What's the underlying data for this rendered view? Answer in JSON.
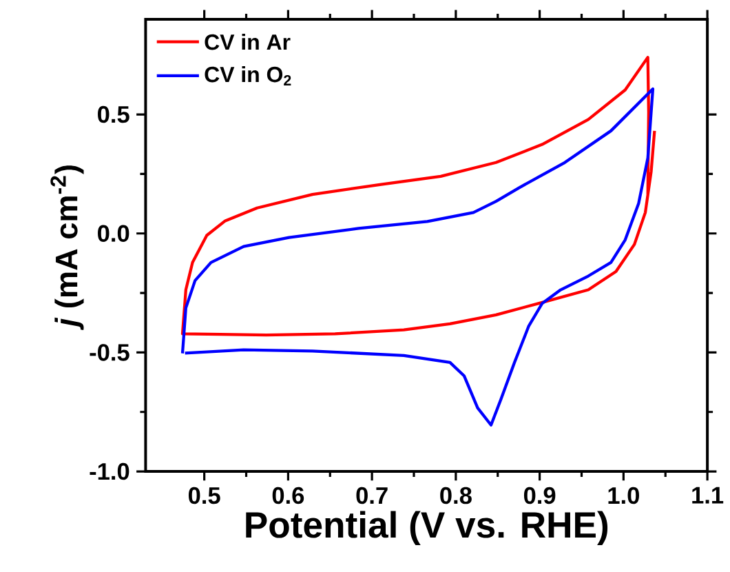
{
  "chart_data": {
    "type": "line",
    "xlabel": "Potential (V vs. RHE)",
    "ylabel": "*j* (mA cm$^{-2}$)",
    "xlim": [
      0.43,
      1.1
    ],
    "ylim": [
      -1.0,
      0.9
    ],
    "xticks": [
      0.5,
      0.6,
      0.7,
      0.8,
      0.9,
      {
        "value": 1.0,
        "label": "1.0"
      },
      1.1
    ],
    "yticks": [
      {
        "value": -1.0,
        "label": "-1.0"
      },
      -0.5,
      {
        "value": 0.0,
        "label": "0.0"
      },
      0.5
    ],
    "legend": "top left",
    "grid": false,
    "marker": "none",
    "line_style": "solid",
    "series": [
      {
        "name": "CV in Ar",
        "color": "#ff0000",
        "x": [
          1.037,
          1.033,
          1.026,
          1.013,
          0.991,
          0.958,
          0.903,
          0.848,
          0.793,
          0.738,
          0.656,
          0.574,
          0.519,
          0.474,
          0.478,
          0.486,
          0.503,
          0.525,
          0.563,
          0.629,
          0.711,
          0.782,
          0.848,
          0.903,
          0.958,
          1.002,
          1.029,
          1.03,
          1.029
        ],
        "values": [
          0.431,
          0.26,
          0.088,
          -0.046,
          -0.16,
          -0.237,
          -0.29,
          -0.342,
          -0.38,
          -0.405,
          -0.422,
          -0.427,
          -0.424,
          -0.422,
          -0.237,
          -0.122,
          -0.008,
          0.053,
          0.107,
          0.164,
          0.206,
          0.24,
          0.298,
          0.374,
          0.479,
          0.603,
          0.74,
          0.508,
          0.164
        ]
      },
      {
        "name": "CV in O$_{2}$",
        "color": "#0000ff",
        "x": [
          0.474,
          0.478,
          0.489,
          0.508,
          0.547,
          0.601,
          0.684,
          0.766,
          0.821,
          0.848,
          0.876,
          0.93,
          0.985,
          1.035,
          1.029,
          1.018,
          1.002,
          0.985,
          0.958,
          0.925,
          0.903,
          0.887,
          0.87,
          0.854,
          0.842,
          0.826,
          0.81,
          0.793,
          0.738,
          0.629,
          0.547,
          0.477
        ],
        "values": [
          -0.504,
          -0.313,
          -0.198,
          -0.122,
          -0.055,
          -0.017,
          0.021,
          0.05,
          0.088,
          0.135,
          0.193,
          0.298,
          0.431,
          0.607,
          0.317,
          0.126,
          -0.027,
          -0.122,
          -0.179,
          -0.237,
          -0.294,
          -0.389,
          -0.542,
          -0.695,
          -0.805,
          -0.733,
          -0.599,
          -0.542,
          -0.513,
          -0.494,
          -0.489,
          -0.503
        ]
      }
    ]
  }
}
